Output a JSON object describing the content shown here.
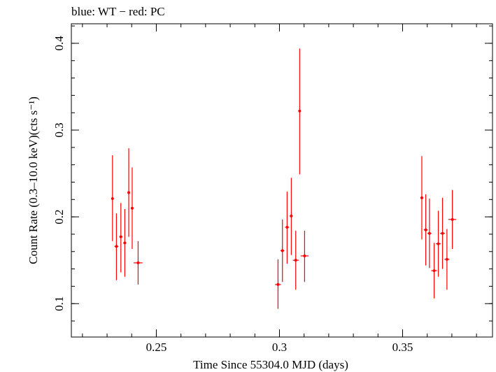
{
  "chart_data": {
    "type": "scatter",
    "title": "blue: WT − red: PC",
    "xlabel": "Time Since 55304.0 MJD (days)",
    "ylabel": "Count Rate (0.3–10.0 keV)(cts s⁻¹)",
    "xlim": [
      0.2155,
      0.3865
    ],
    "ylim": [
      0.0615,
      0.4225
    ],
    "x_ticks": [
      {
        "value": 0.25,
        "label": "0.25"
      },
      {
        "value": 0.3,
        "label": "0.3"
      },
      {
        "value": 0.35,
        "label": "0.35"
      }
    ],
    "y_ticks": [
      {
        "value": 0.1,
        "label": "0.1"
      },
      {
        "value": 0.2,
        "label": "0.2"
      },
      {
        "value": 0.3,
        "label": "0.3"
      },
      {
        "value": 0.4,
        "label": "0.4"
      }
    ],
    "grid": false,
    "series": [
      {
        "name": "PC",
        "color": "#ff0000",
        "points": [
          {
            "x": 0.2322,
            "y": 0.221,
            "xerr": 0.0004,
            "ylo": 0.172,
            "yhi": 0.271
          },
          {
            "x": 0.2338,
            "y": 0.166,
            "xerr": 0.0008,
            "ylo": 0.127,
            "yhi": 0.204
          },
          {
            "x": 0.2356,
            "y": 0.177,
            "xerr": 0.0006,
            "ylo": 0.136,
            "yhi": 0.216
          },
          {
            "x": 0.2372,
            "y": 0.17,
            "xerr": 0.0006,
            "ylo": 0.131,
            "yhi": 0.209
          },
          {
            "x": 0.2388,
            "y": 0.228,
            "xerr": 0.0004,
            "ylo": 0.177,
            "yhi": 0.279
          },
          {
            "x": 0.2402,
            "y": 0.21,
            "xerr": 0.0004,
            "ylo": 0.163,
            "yhi": 0.257
          },
          {
            "x": 0.2426,
            "y": 0.147,
            "xerr": 0.0018,
            "ylo": 0.122,
            "yhi": 0.172
          },
          {
            "x": 0.2994,
            "y": 0.122,
            "xerr": 0.0012,
            "ylo": 0.094,
            "yhi": 0.151
          },
          {
            "x": 0.3012,
            "y": 0.161,
            "xerr": 0.0008,
            "ylo": 0.125,
            "yhi": 0.197
          },
          {
            "x": 0.3031,
            "y": 0.188,
            "xerr": 0.0008,
            "ylo": 0.146,
            "yhi": 0.229
          },
          {
            "x": 0.3048,
            "y": 0.201,
            "xerr": 0.0006,
            "ylo": 0.156,
            "yhi": 0.245
          },
          {
            "x": 0.3066,
            "y": 0.15,
            "xerr": 0.0012,
            "ylo": 0.116,
            "yhi": 0.184
          },
          {
            "x": 0.3082,
            "y": 0.322,
            "xerr": 0.0004,
            "ylo": 0.249,
            "yhi": 0.394
          },
          {
            "x": 0.3102,
            "y": 0.155,
            "xerr": 0.0016,
            "ylo": 0.125,
            "yhi": 0.184
          },
          {
            "x": 0.3578,
            "y": 0.222,
            "xerr": 0.0006,
            "ylo": 0.174,
            "yhi": 0.27
          },
          {
            "x": 0.3594,
            "y": 0.185,
            "xerr": 0.0008,
            "ylo": 0.144,
            "yhi": 0.226
          },
          {
            "x": 0.3609,
            "y": 0.181,
            "xerr": 0.0008,
            "ylo": 0.141,
            "yhi": 0.221
          },
          {
            "x": 0.3628,
            "y": 0.138,
            "xerr": 0.0012,
            "ylo": 0.106,
            "yhi": 0.17
          },
          {
            "x": 0.3645,
            "y": 0.169,
            "xerr": 0.001,
            "ylo": 0.131,
            "yhi": 0.207
          },
          {
            "x": 0.3662,
            "y": 0.181,
            "xerr": 0.001,
            "ylo": 0.14,
            "yhi": 0.222
          },
          {
            "x": 0.368,
            "y": 0.151,
            "xerr": 0.001,
            "ylo": 0.116,
            "yhi": 0.186
          },
          {
            "x": 0.3702,
            "y": 0.197,
            "xerr": 0.0016,
            "ylo": 0.163,
            "yhi": 0.231
          }
        ]
      }
    ]
  }
}
